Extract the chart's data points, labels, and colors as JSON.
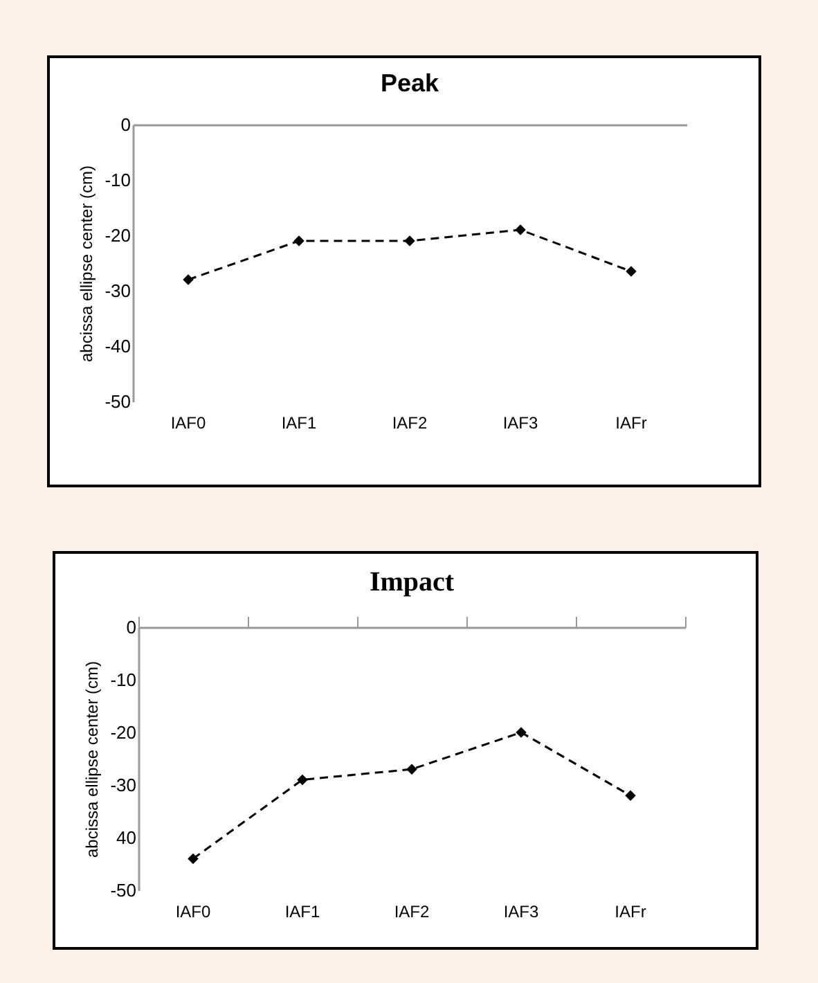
{
  "chart_data": [
    {
      "type": "line",
      "title": "Peak",
      "ylabel": "abcissa ellipse center (cm)",
      "categories": [
        "IAF0",
        "IAF1",
        "IAF2",
        "IAF3",
        "IAFr"
      ],
      "series": [
        {
          "color": "#000000",
          "values": [
            -28,
            -21,
            -21,
            -19,
            -26.5
          ]
        }
      ],
      "ylim": [
        -50,
        0
      ],
      "yticks": [
        0,
        -10,
        -20,
        -30,
        -40,
        -50
      ],
      "grid": false,
      "marker": "diamond",
      "line_style": "dashed"
    },
    {
      "type": "line",
      "title": "Impact",
      "ylabel": "abcissa ellipse center (cm)",
      "categories": [
        "IAF0",
        "IAF1",
        "IAF2",
        "IAF3",
        "IAFr"
      ],
      "series": [
        {
          "color": "#000000",
          "values": [
            -44,
            -29,
            -27,
            -20,
            -32
          ]
        }
      ],
      "ylim": [
        -50,
        0
      ],
      "yticks": [
        0,
        -10,
        -20,
        -30,
        {
          "value": -40,
          "label": "40"
        },
        -50
      ],
      "grid": false,
      "marker": "diamond",
      "line_style": "dashed"
    }
  ]
}
